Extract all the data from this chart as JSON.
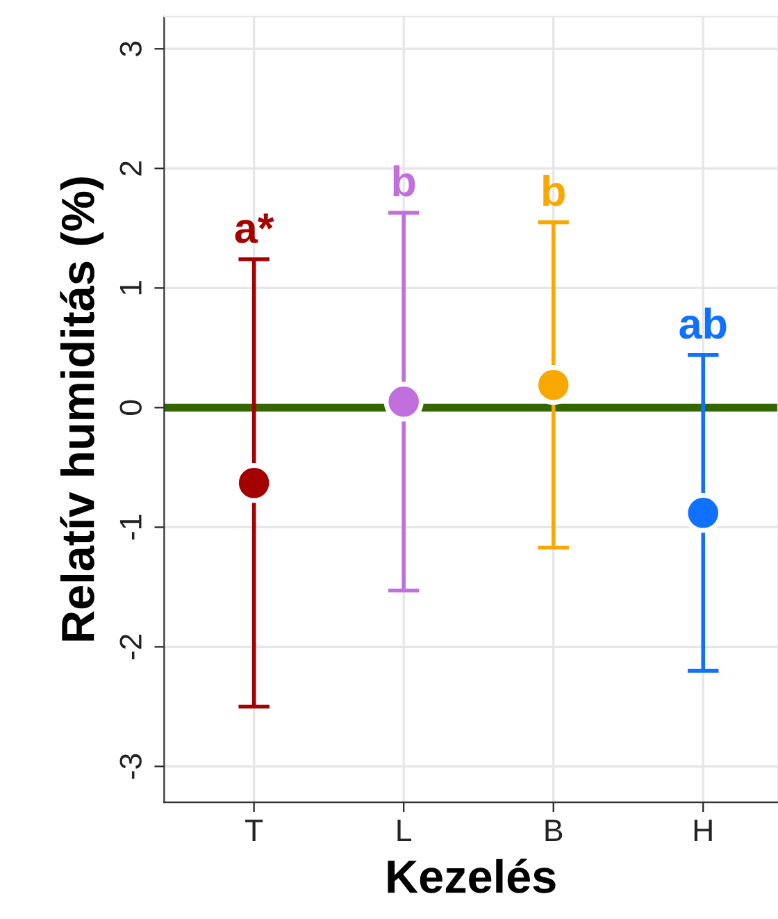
{
  "chart_data": {
    "type": "scatter",
    "xlabel": "Kezelés",
    "ylabel": "Relatív humiditás (%)",
    "categories": [
      "T",
      "L",
      "B",
      "H"
    ],
    "values": [
      -0.63,
      0.05,
      0.19,
      -0.88
    ],
    "errors": [
      1.87,
      1.58,
      1.36,
      1.32
    ],
    "colors": [
      "#a50000",
      "#c06fdc",
      "#f8a800",
      "#1070ff"
    ],
    "marker": "circle",
    "ylim": [
      -3.3,
      3.27
    ],
    "yticks": [
      -3,
      -2,
      -1,
      0,
      1,
      2,
      3
    ],
    "grid": true,
    "ref_lines": [
      {
        "axis": "y",
        "value": 0,
        "label": null,
        "color": "#336600",
        "line_style": "solid"
      }
    ],
    "annotations": [
      {
        "text": "a*",
        "x": "T",
        "y": 1.24
      },
      {
        "text": "b",
        "x": "L",
        "y": 1.63
      },
      {
        "text": "b",
        "x": "B",
        "y": 1.55
      },
      {
        "text": "ab",
        "x": "H",
        "y": 0.44
      }
    ]
  }
}
